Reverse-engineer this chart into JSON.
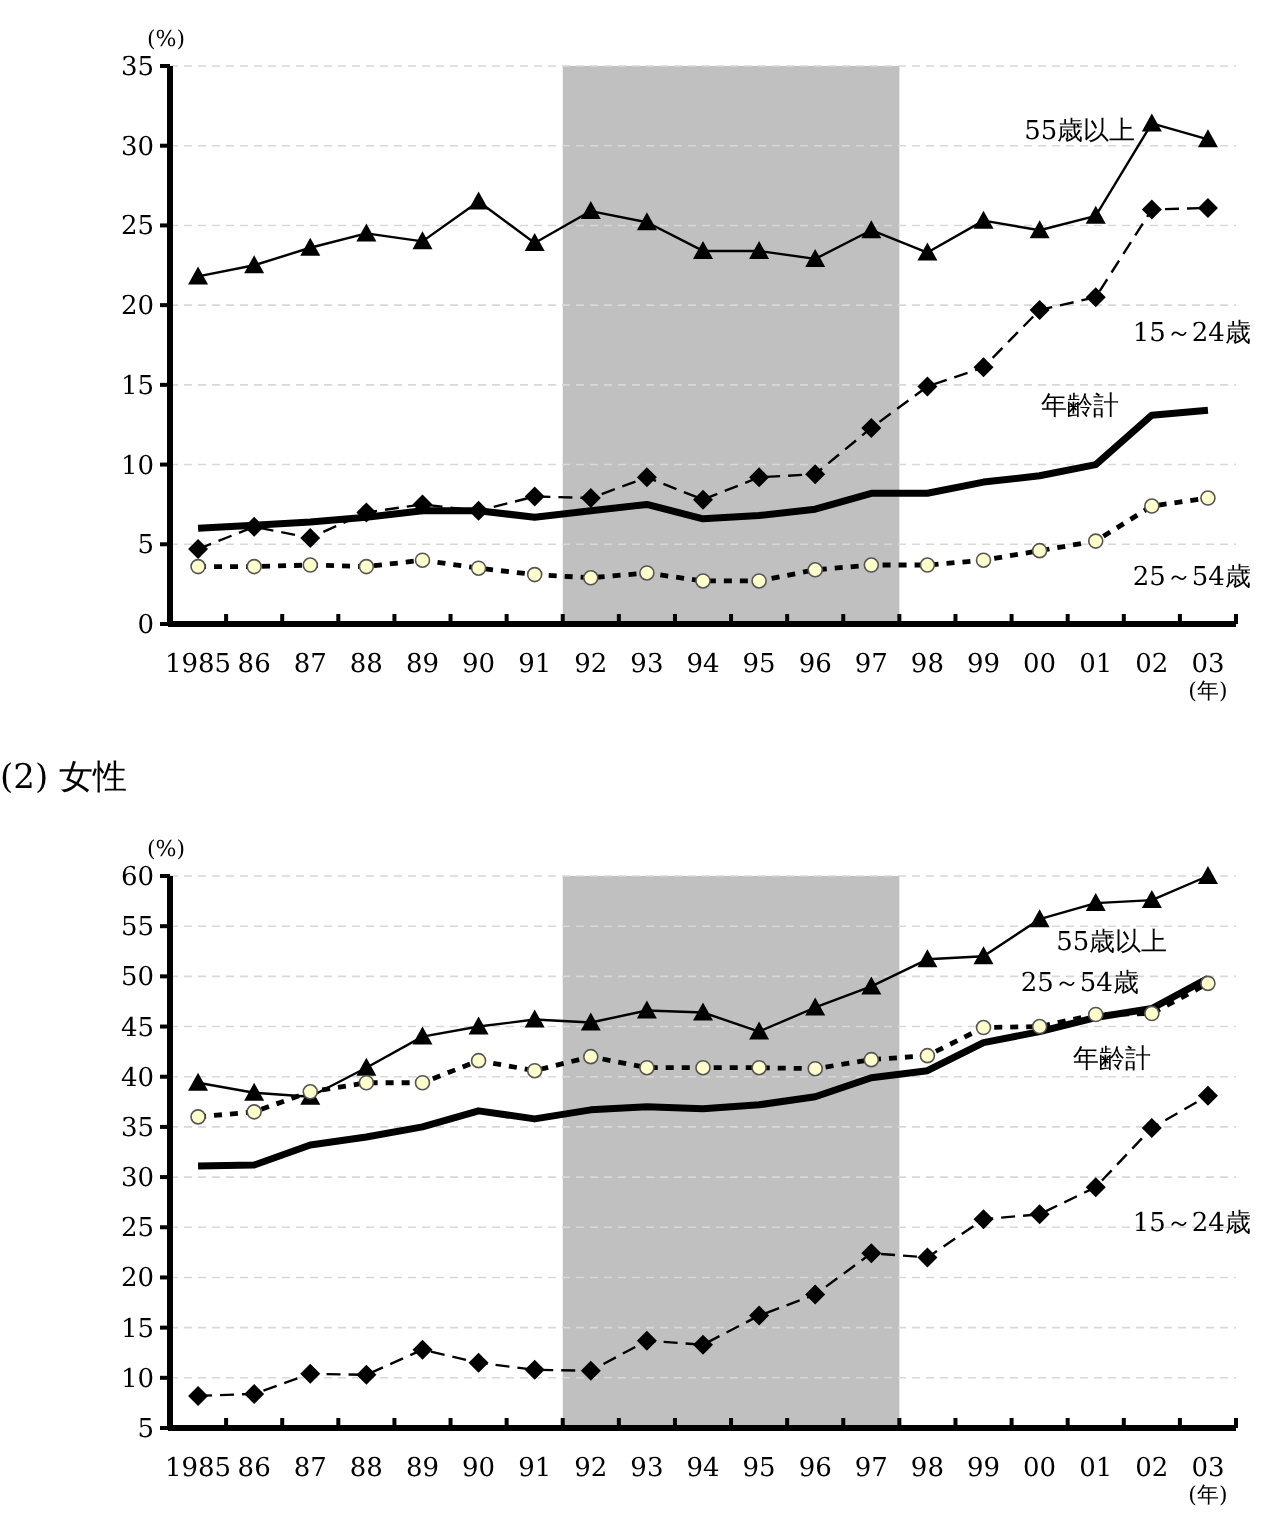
{
  "chart_data": [
    {
      "type": "line",
      "ylabel": "(%)",
      "xlabel": "(年)",
      "categories": [
        "1985",
        "86",
        "87",
        "88",
        "89",
        "90",
        "91",
        "92",
        "93",
        "94",
        "95",
        "96",
        "97",
        "98",
        "99",
        "00",
        "01",
        "02",
        "03"
      ],
      "ylim": [
        0,
        35
      ],
      "yticks": [
        0,
        5,
        10,
        15,
        20,
        25,
        30,
        35
      ],
      "grid": "y",
      "legend": false,
      "bands": [
        {
          "axis": "x",
          "from": "92",
          "to": "97",
          "color": "#c0c0c0"
        }
      ],
      "series": [
        {
          "name": "55歳以上",
          "color": "#000000",
          "marker": "triangle",
          "line_style": "solid",
          "values": [
            21.8,
            22.5,
            23.6,
            24.5,
            24.0,
            26.5,
            23.9,
            25.9,
            25.2,
            23.4,
            23.4,
            22.9,
            24.7,
            23.3,
            25.3,
            24.7,
            25.6,
            31.4,
            30.4
          ]
        },
        {
          "name": "15～24歳",
          "color": "#000000",
          "marker": "diamond",
          "line_style": "dashed",
          "values": [
            4.7,
            6.1,
            5.4,
            7.0,
            7.5,
            7.1,
            8.0,
            7.9,
            9.2,
            7.8,
            9.2,
            9.4,
            12.3,
            14.9,
            16.1,
            19.7,
            20.5,
            26.0,
            26.1
          ]
        },
        {
          "name": "年齢計",
          "color": "#000000",
          "marker": "none",
          "line_style": "solid",
          "values": [
            6.0,
            6.2,
            6.4,
            6.7,
            7.1,
            7.1,
            6.7,
            7.1,
            7.5,
            6.6,
            6.8,
            7.2,
            8.2,
            8.2,
            8.9,
            9.3,
            10.0,
            13.1,
            13.4
          ]
        },
        {
          "name": "25～54歳",
          "color": "#000000",
          "marker": "circle",
          "line_style": "dotted",
          "values": [
            3.6,
            3.6,
            3.7,
            3.6,
            4.0,
            3.5,
            3.1,
            2.9,
            3.2,
            2.7,
            2.7,
            3.4,
            3.7,
            3.7,
            4.0,
            4.6,
            5.2,
            7.4,
            7.9
          ]
        }
      ]
    },
    {
      "type": "line",
      "title": "(2)  女性",
      "ylabel": "(%)",
      "xlabel": "(年)",
      "categories": [
        "1985",
        "86",
        "87",
        "88",
        "89",
        "90",
        "91",
        "92",
        "93",
        "94",
        "95",
        "96",
        "97",
        "98",
        "99",
        "00",
        "01",
        "02",
        "03"
      ],
      "ylim": [
        5,
        60
      ],
      "yticks": [
        5,
        10,
        15,
        20,
        25,
        30,
        35,
        40,
        45,
        50,
        55,
        60
      ],
      "grid": "y",
      "legend": false,
      "bands": [
        {
          "axis": "x",
          "from": "92",
          "to": "97",
          "color": "#c0c0c0"
        }
      ],
      "series": [
        {
          "name": "55歳以上",
          "color": "#000000",
          "marker": "triangle",
          "line_style": "solid",
          "values": [
            39.4,
            38.4,
            38.0,
            40.9,
            44.0,
            45.0,
            45.7,
            45.4,
            46.6,
            46.4,
            44.5,
            46.9,
            49.0,
            51.7,
            52.0,
            55.7,
            57.3,
            57.6,
            60
          ]
        },
        {
          "name": "25～54歳",
          "color": "#000000",
          "marker": "circle",
          "line_style": "dotted",
          "values": [
            36.0,
            36.5,
            38.5,
            39.4,
            39.4,
            41.6,
            40.6,
            42.0,
            40.9,
            40.9,
            40.9,
            40.8,
            41.7,
            42.1,
            44.9,
            45.0,
            46.2,
            46.3,
            49.3
          ]
        },
        {
          "name": "年齢計",
          "color": "#000000",
          "marker": "none",
          "line_style": "solid",
          "values": [
            31.1,
            31.2,
            33.2,
            34.0,
            35.0,
            36.6,
            35.8,
            36.7,
            37.0,
            36.8,
            37.2,
            38.0,
            39.9,
            40.6,
            43.4,
            44.5,
            45.9,
            46.8,
            49.8
          ]
        },
        {
          "name": "15～24歳",
          "color": "#000000",
          "marker": "diamond",
          "line_style": "dashed",
          "values": [
            8.2,
            8.4,
            10.4,
            10.3,
            12.8,
            11.5,
            10.8,
            10.7,
            13.7,
            13.3,
            16.2,
            18.3,
            22.4,
            22.0,
            25.8,
            26.3,
            29.0,
            34.9,
            38.1
          ]
        }
      ]
    }
  ]
}
